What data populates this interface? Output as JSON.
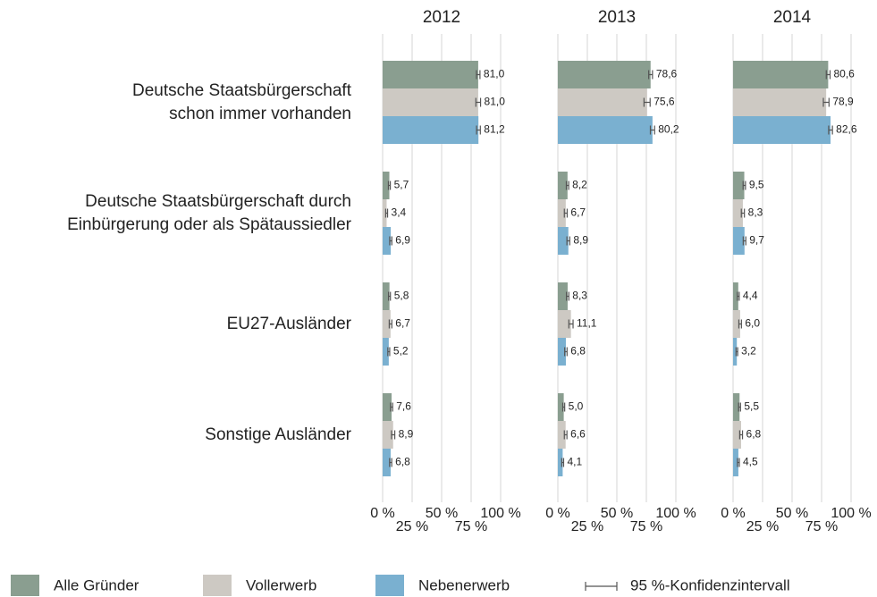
{
  "chart_data": {
    "type": "bar",
    "orientation": "horizontal",
    "categories": [
      "Deutsche Staatsbürgerschaft\nschon immer vorhanden",
      "Deutsche Staatsbürgerschaft durch\nEinbürgerung oder als Spätaussiedler",
      "EU27-Ausländer",
      "Sonstige Ausländer"
    ],
    "series": [
      {
        "name": "Alle Gründer",
        "color": "#8a9e90"
      },
      {
        "name": "Vollerwerb",
        "color": "#cdc9c3"
      },
      {
        "name": "Nebenerwerb",
        "color": "#7ab0d0"
      }
    ],
    "ci_label": "95 %-Konfidenzintervall",
    "xlim": [
      0,
      100
    ],
    "xticks": [
      {
        "value": 0,
        "label": "0 %"
      },
      {
        "value": 25,
        "label": "25 %"
      },
      {
        "value": 50,
        "label": "50 %"
      },
      {
        "value": 75,
        "label": "75 %"
      },
      {
        "value": 100,
        "label": "100 %"
      }
    ],
    "grid": true,
    "panels": [
      {
        "title": "2012",
        "series": [
          {
            "values": [
              81.0,
              5.7,
              5.8,
              7.6
            ],
            "value_labels": [
              "81,0",
              "5,7",
              "5,8",
              "7,6"
            ],
            "errors": [
              1.5,
              0.8,
              0.8,
              0.9
            ]
          },
          {
            "values": [
              81.0,
              3.4,
              6.7,
              8.9
            ],
            "value_labels": [
              "81,0",
              "3,4",
              "6,7",
              "8,9"
            ],
            "errors": [
              2.0,
              0.8,
              1.1,
              1.4
            ]
          },
          {
            "values": [
              81.2,
              6.9,
              5.2,
              6.8
            ],
            "value_labels": [
              "81,2",
              "6,9",
              "5,2",
              "6,8"
            ],
            "errors": [
              1.6,
              0.9,
              0.8,
              0.9
            ]
          }
        ]
      },
      {
        "title": "2013",
        "series": [
          {
            "values": [
              78.6,
              8.2,
              8.3,
              5.0
            ],
            "value_labels": [
              "78,6",
              "8,2",
              "8,3",
              "5,0"
            ],
            "errors": [
              1.6,
              1.0,
              1.0,
              0.8
            ]
          },
          {
            "values": [
              75.6,
              6.7,
              11.1,
              6.6
            ],
            "value_labels": [
              "75,6",
              "6,7",
              "11,1",
              "6,6"
            ],
            "errors": [
              2.6,
              1.2,
              1.8,
              1.1
            ]
          },
          {
            "values": [
              80.2,
              8.9,
              6.8,
              4.1
            ],
            "value_labels": [
              "80,2",
              "8,9",
              "6,8",
              "4,1"
            ],
            "errors": [
              1.8,
              1.2,
              1.0,
              0.8
            ]
          }
        ]
      },
      {
        "title": "2014",
        "series": [
          {
            "values": [
              80.6,
              9.5,
              4.4,
              5.5
            ],
            "value_labels": [
              "80,6",
              "9,5",
              "4,4",
              "5,5"
            ],
            "errors": [
              1.6,
              1.0,
              0.8,
              0.8
            ]
          },
          {
            "values": [
              78.9,
              8.3,
              6.0,
              6.8
            ],
            "value_labels": [
              "78,9",
              "8,3",
              "6,0",
              "6,8"
            ],
            "errors": [
              2.4,
              1.3,
              1.1,
              1.2
            ]
          },
          {
            "values": [
              82.6,
              9.7,
              3.2,
              4.5
            ],
            "value_labels": [
              "82,6",
              "9,7",
              "3,2",
              "4,5"
            ],
            "errors": [
              1.6,
              1.1,
              0.7,
              0.8
            ]
          }
        ]
      }
    ]
  }
}
